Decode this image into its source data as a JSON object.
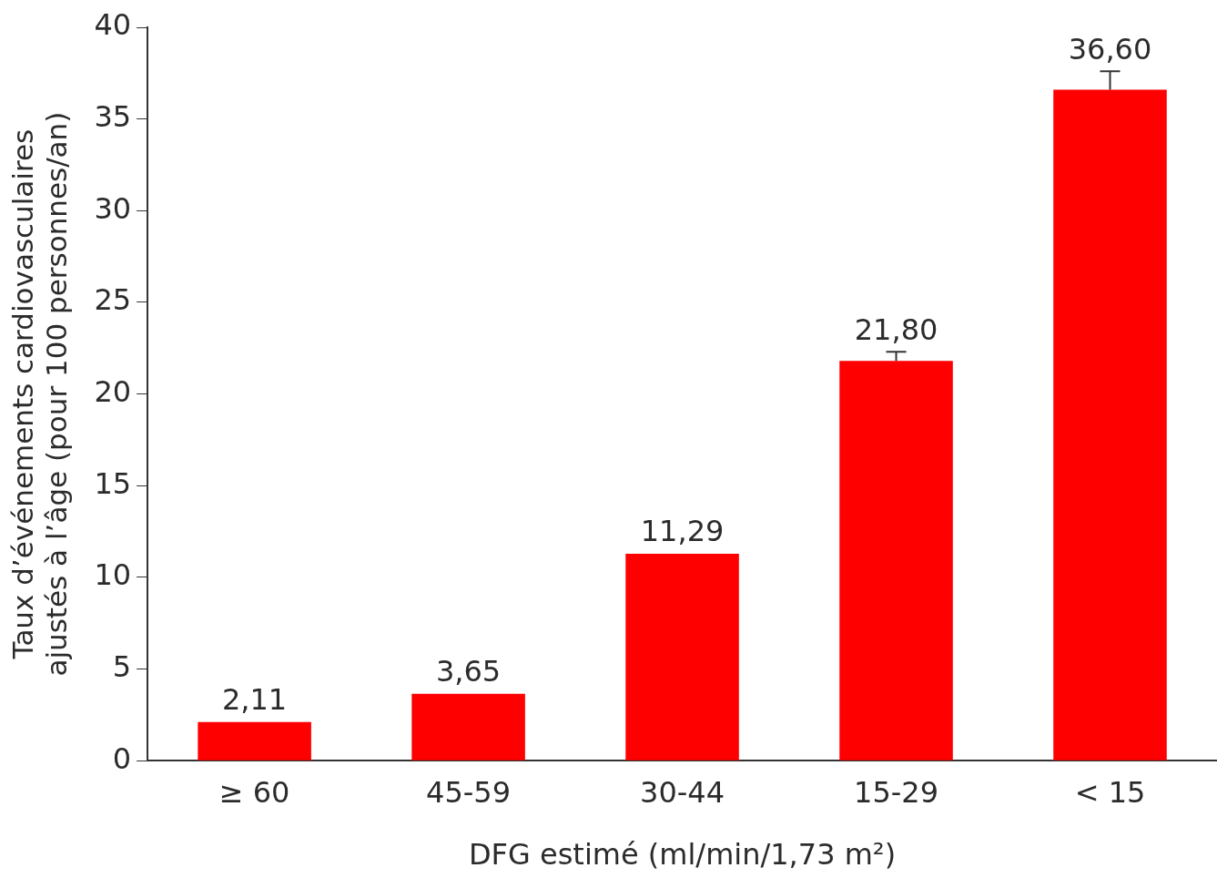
{
  "chart_data": {
    "type": "bar",
    "categories": [
      "≥ 60",
      "45-59",
      "30-44",
      "15-29",
      "< 15"
    ],
    "values": [
      2.11,
      3.65,
      11.29,
      21.8,
      36.6
    ],
    "value_labels": [
      "2,11",
      "3,65",
      "11,29",
      "21,80",
      "36,60"
    ],
    "errors": [
      null,
      null,
      null,
      [
        21.8,
        22.3
      ],
      [
        36.6,
        37.6
      ]
    ],
    "color": "#ff0000",
    "xlabel": "DFG estimé (ml/min/1,73 m²)",
    "ylabel": "Taux d’événements cardiovasculaires\najustés à l’âge (pour 100 personnes/an)",
    "ylim": [
      0,
      40
    ],
    "yticks": [
      0,
      5,
      10,
      15,
      20,
      25,
      30,
      35,
      40
    ],
    "grid": false,
    "legend": false
  }
}
